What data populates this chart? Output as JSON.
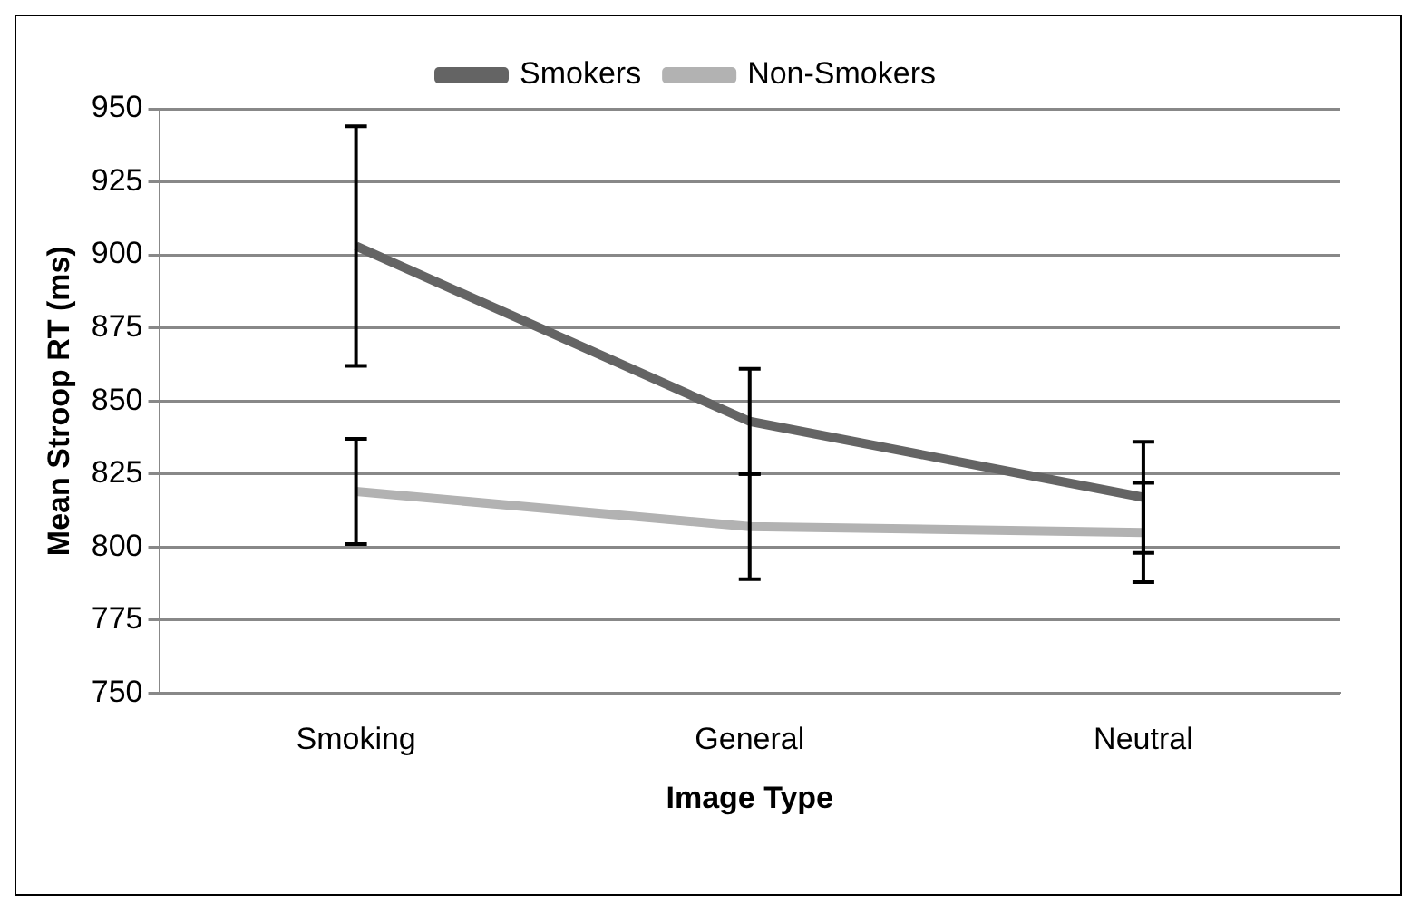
{
  "chart_data": {
    "type": "line",
    "xlabel": "Image Type",
    "ylabel": "Mean Stroop RT (ms)",
    "categories": [
      "Smoking",
      "General",
      "Neutral"
    ],
    "series": [
      {
        "name": "Smokers",
        "color": "#646464",
        "values": [
          903,
          843,
          817
        ],
        "errors": [
          41,
          18,
          19
        ]
      },
      {
        "name": "Non-Smokers",
        "color": "#b2b2b2",
        "values": [
          819,
          807,
          805
        ],
        "errors": [
          18,
          18,
          17
        ]
      }
    ],
    "ylim": [
      750,
      950
    ],
    "yticks": [
      750,
      775,
      800,
      825,
      850,
      875,
      900,
      925,
      950
    ],
    "grid": "y",
    "legend": "top",
    "marker": "none",
    "line_style": "solid"
  }
}
